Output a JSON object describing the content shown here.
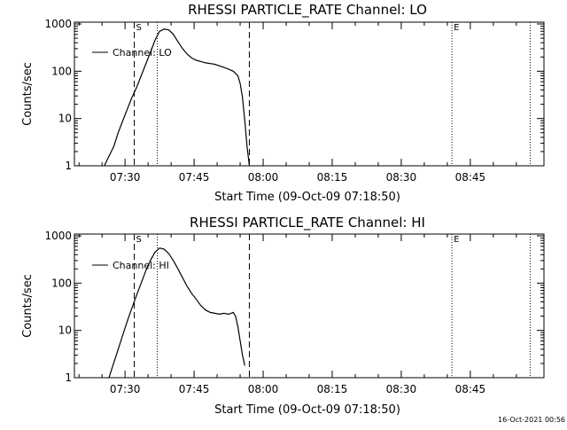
{
  "chart_data": [
    {
      "type": "line",
      "title": "RHESSI PARTICLE_RATE Channel: LO",
      "xlabel": "Start Time (09-Oct-09 07:18:50)",
      "ylabel": "Counts/sec",
      "yscale": "log",
      "ylim": [
        1,
        1000
      ],
      "xlim": [
        "07:19:00",
        "09:01:00"
      ],
      "x_ticks": [
        "07:30",
        "07:45",
        "08:00",
        "08:15",
        "08:30",
        "08:45"
      ],
      "y_ticks": [
        "1",
        "10",
        "100",
        "1000"
      ],
      "legend": {
        "text": "Channel: LO",
        "placement": "top-left"
      },
      "markers": [
        {
          "time": "07:32:00",
          "style": "dashed",
          "label": "S"
        },
        {
          "time": "07:37:00",
          "style": "dotted",
          "label": ""
        },
        {
          "time": "07:57:00",
          "style": "dashed",
          "label": ""
        },
        {
          "time": "08:41:00",
          "style": "dotted",
          "label": "E"
        },
        {
          "time": "08:58:00",
          "style": "dotted",
          "label": ""
        }
      ],
      "series": [
        {
          "name": "Channel: LO",
          "x": [
            "07:25:30",
            "07:26:30",
            "07:27:30",
            "07:28:30",
            "07:29:30",
            "07:30:30",
            "07:31:30",
            "07:32:30",
            "07:33:30",
            "07:34:30",
            "07:35:30",
            "07:36:30",
            "07:37:30",
            "07:38:30",
            "07:39:30",
            "07:40:30",
            "07:41:30",
            "07:42:30",
            "07:43:30",
            "07:44:30",
            "07:45:30",
            "07:46:30",
            "07:47:30",
            "07:48:30",
            "07:49:30",
            "07:50:30",
            "07:51:30",
            "07:52:30",
            "07:53:30",
            "07:54:30",
            "07:55:00",
            "07:55:30",
            "07:56:00",
            "07:56:30",
            "07:57:00"
          ],
          "y": [
            1,
            1.6,
            2.5,
            5,
            9,
            16,
            28,
            45,
            80,
            140,
            250,
            450,
            700,
            780,
            750,
            600,
            420,
            300,
            230,
            190,
            170,
            160,
            150,
            145,
            140,
            130,
            120,
            110,
            100,
            80,
            55,
            28,
            9,
            2.5,
            1
          ]
        }
      ]
    },
    {
      "type": "line",
      "title": "RHESSI PARTICLE_RATE Channel: HI",
      "xlabel": "Start Time (09-Oct-09 07:18:50)",
      "ylabel": "Counts/sec",
      "yscale": "log",
      "ylim": [
        1,
        1000
      ],
      "xlim": [
        "07:19:00",
        "09:01:00"
      ],
      "x_ticks": [
        "07:30",
        "07:45",
        "08:00",
        "08:15",
        "08:30",
        "08:45"
      ],
      "y_ticks": [
        "1",
        "10",
        "100",
        "1000"
      ],
      "legend": {
        "text": "Channel: HI",
        "placement": "top-left"
      },
      "markers": [
        {
          "time": "07:32:00",
          "style": "dashed",
          "label": "S"
        },
        {
          "time": "07:37:00",
          "style": "dotted",
          "label": ""
        },
        {
          "time": "07:57:00",
          "style": "dashed",
          "label": ""
        },
        {
          "time": "08:41:00",
          "style": "dotted",
          "label": "E"
        },
        {
          "time": "08:58:00",
          "style": "dotted",
          "label": ""
        }
      ],
      "series": [
        {
          "name": "Channel: HI",
          "x": [
            "07:26:30",
            "07:27:30",
            "07:28:30",
            "07:29:30",
            "07:30:30",
            "07:31:30",
            "07:32:30",
            "07:33:30",
            "07:34:30",
            "07:35:30",
            "07:36:30",
            "07:37:30",
            "07:38:30",
            "07:39:30",
            "07:40:30",
            "07:41:30",
            "07:42:30",
            "07:43:30",
            "07:44:30",
            "07:45:30",
            "07:46:30",
            "07:47:30",
            "07:48:30",
            "07:49:30",
            "07:50:30",
            "07:51:30",
            "07:52:30",
            "07:53:30",
            "07:54:00",
            "07:54:30",
            "07:55:00",
            "07:55:30",
            "07:56:00"
          ],
          "y": [
            1,
            2,
            4,
            8,
            16,
            30,
            55,
            100,
            180,
            300,
            450,
            550,
            520,
            420,
            300,
            200,
            130,
            85,
            60,
            45,
            33,
            27,
            24,
            23,
            22,
            23,
            22,
            24,
            20,
            12,
            6,
            3,
            1.8
          ]
        }
      ]
    }
  ],
  "footer": {
    "timestamp": "16-Oct-2021 00:56"
  }
}
